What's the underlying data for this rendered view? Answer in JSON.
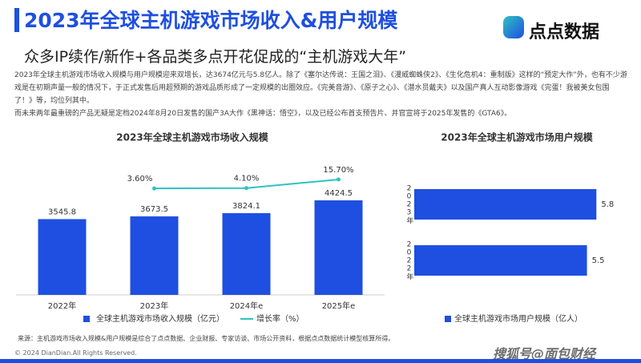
{
  "header": {
    "title": "2023年全球主机游戏市场收入&用户规模",
    "subtitle": "众多IP续作/新作+各品类多点开花促成的“主机游戏大年”",
    "logo": "点点数据",
    "paragraphs": [
      "2023年全球主机游戏市场收入规模与用户规模迎来双增长，达3674亿元与5.8亿人。除了《塞尔达传说：王国之泪》、《漫威蜘蛛侠2》、《生化危机4：重制版》这样的“预定大作”外，也有不少游戏是在初期声量一般的情况下，于正式发售后用超预期的游戏品质形成了一定规模的出圈效应。《完美音游》、《原子之心》、《潜水员戴夫》以及国产真人互动影像游戏《完蛋！我被美女包围了！》等，均位列其中。",
      "而未来两年最重磅的产品无疑是定档2024年8月20日发售的国产3A大作《黑神话：悟空》，以及已经公布首支预告片、并官宣将于2025年发售的《GTA6》。"
    ]
  },
  "chart_data": [
    {
      "type": "bar",
      "title": "2023年全球主机游戏市场收入规模",
      "categories": [
        "2022年",
        "2023年",
        "2024年e",
        "2025年e"
      ],
      "series": [
        {
          "name": "全球主机游戏市场收入规模（亿元）",
          "color": "#1f4fe0",
          "values": [
            3545.8,
            3673.5,
            3824.1,
            4424.5
          ]
        },
        {
          "name": "增长率（%）",
          "type": "line",
          "axis": "y2",
          "color": "#2fc2c2",
          "values": [
            null,
            3.6,
            4.1,
            15.7
          ],
          "value_labels": [
            null,
            "3.60%",
            "4.10%",
            "15.70%"
          ]
        }
      ],
      "ylim": [
        0,
        5550
      ],
      "y2lim": [
        -140,
        20
      ]
    },
    {
      "type": "hbar",
      "title": "2023年全球主机游戏市场用户规模",
      "categories": [
        "2023年",
        "2022年"
      ],
      "series": [
        {
          "name": "全球主机游戏市场用户规模（亿人）",
          "color": "#1f4fe0",
          "values": [
            5.8,
            5.5
          ]
        }
      ],
      "xlim": [
        0,
        6.2
      ]
    }
  ],
  "footer": {
    "source": "来源：主机游戏市场收入规模&用户规模是综合了点点数据、企业财报、专家访谈、市场公开资料，根据点点数据统计模型核算所得。",
    "copyright": "© 2024 DianDian.All Rights Reserved.",
    "watermark": "搜狐号@面包财经"
  }
}
